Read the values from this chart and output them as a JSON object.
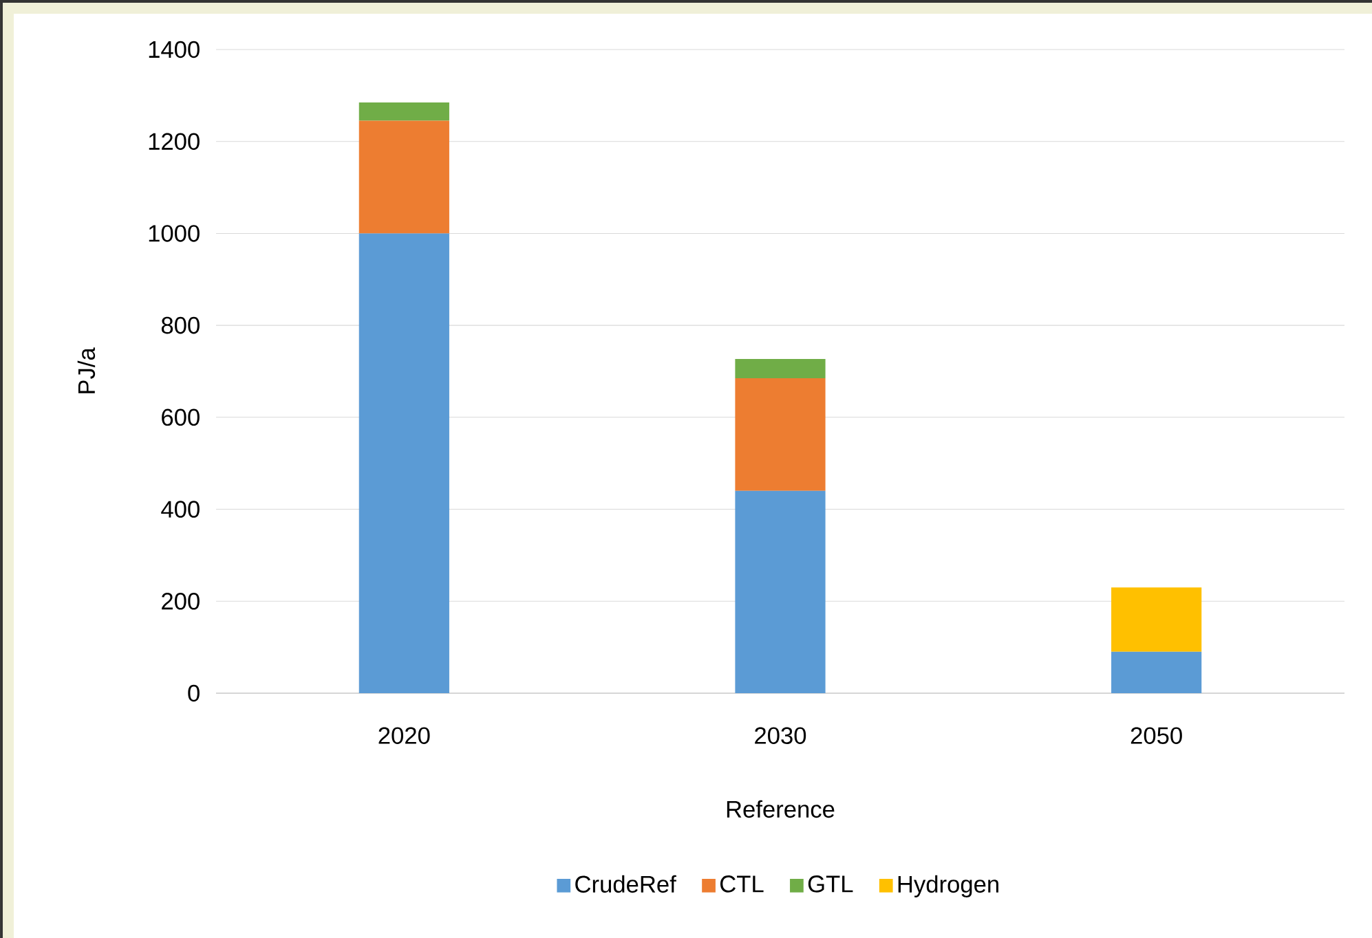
{
  "chart_data": {
    "type": "bar",
    "stacked": true,
    "ylabel": "PJ/a",
    "xlabel": "Reference",
    "categories": [
      "2020",
      "2030",
      "2050"
    ],
    "series": [
      {
        "name": "CrudeRef",
        "color": "#5b9bd5",
        "values": [
          1000,
          440,
          90
        ]
      },
      {
        "name": "CTL",
        "color": "#ed7d31",
        "values": [
          245,
          245,
          0
        ]
      },
      {
        "name": "GTL",
        "color": "#70ad47",
        "values": [
          40,
          42,
          0
        ]
      },
      {
        "name": "Hydrogen",
        "color": "#ffc000",
        "values": [
          0,
          0,
          140
        ]
      }
    ],
    "ylim": [
      0,
      1400
    ],
    "yticks": [
      0,
      200,
      400,
      600,
      800,
      1000,
      1200,
      1400
    ],
    "grid": "y",
    "legend": "bottom"
  }
}
